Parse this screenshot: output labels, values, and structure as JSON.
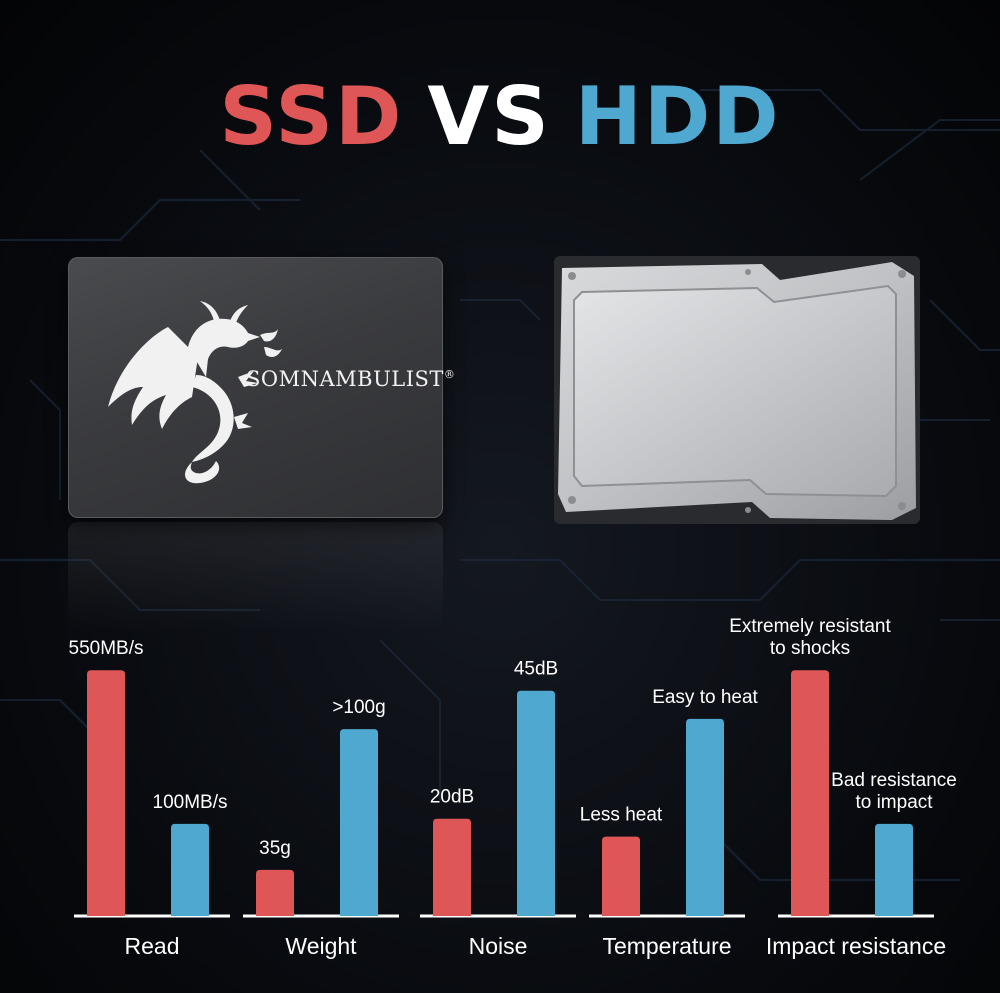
{
  "header": {
    "ssd": "SSD",
    "vs": "VS",
    "hdd": "HDD"
  },
  "ssd_label": {
    "brand": "SOMNAMBULIST",
    "registered": "®"
  },
  "colors": {
    "ssd": "#df5656",
    "hdd": "#4ea8cf",
    "baseline": "#ffffff"
  },
  "chart_data": {
    "type": "bar",
    "categories": [
      "Read",
      "Weight",
      "Noise",
      "Temperature",
      "Impact resistance"
    ],
    "series": [
      {
        "color": "#df5656",
        "values": [
          96,
          18,
          38,
          31,
          96
        ],
        "labels": [
          "550MB/s",
          "35g",
          "20dB",
          "Less heat",
          "Extremely resistant\nto shocks"
        ]
      },
      {
        "color": "#4ea8cf",
        "values": [
          36,
          73,
          88,
          77,
          36
        ],
        "labels": [
          "100MB/s",
          ">100g",
          "45dB",
          "Easy to heat",
          "Bad resistance\nto impact"
        ]
      }
    ],
    "ylim": [
      0,
      100
    ],
    "xlabel": "",
    "ylabel": "",
    "grid": false,
    "legend": "none"
  }
}
